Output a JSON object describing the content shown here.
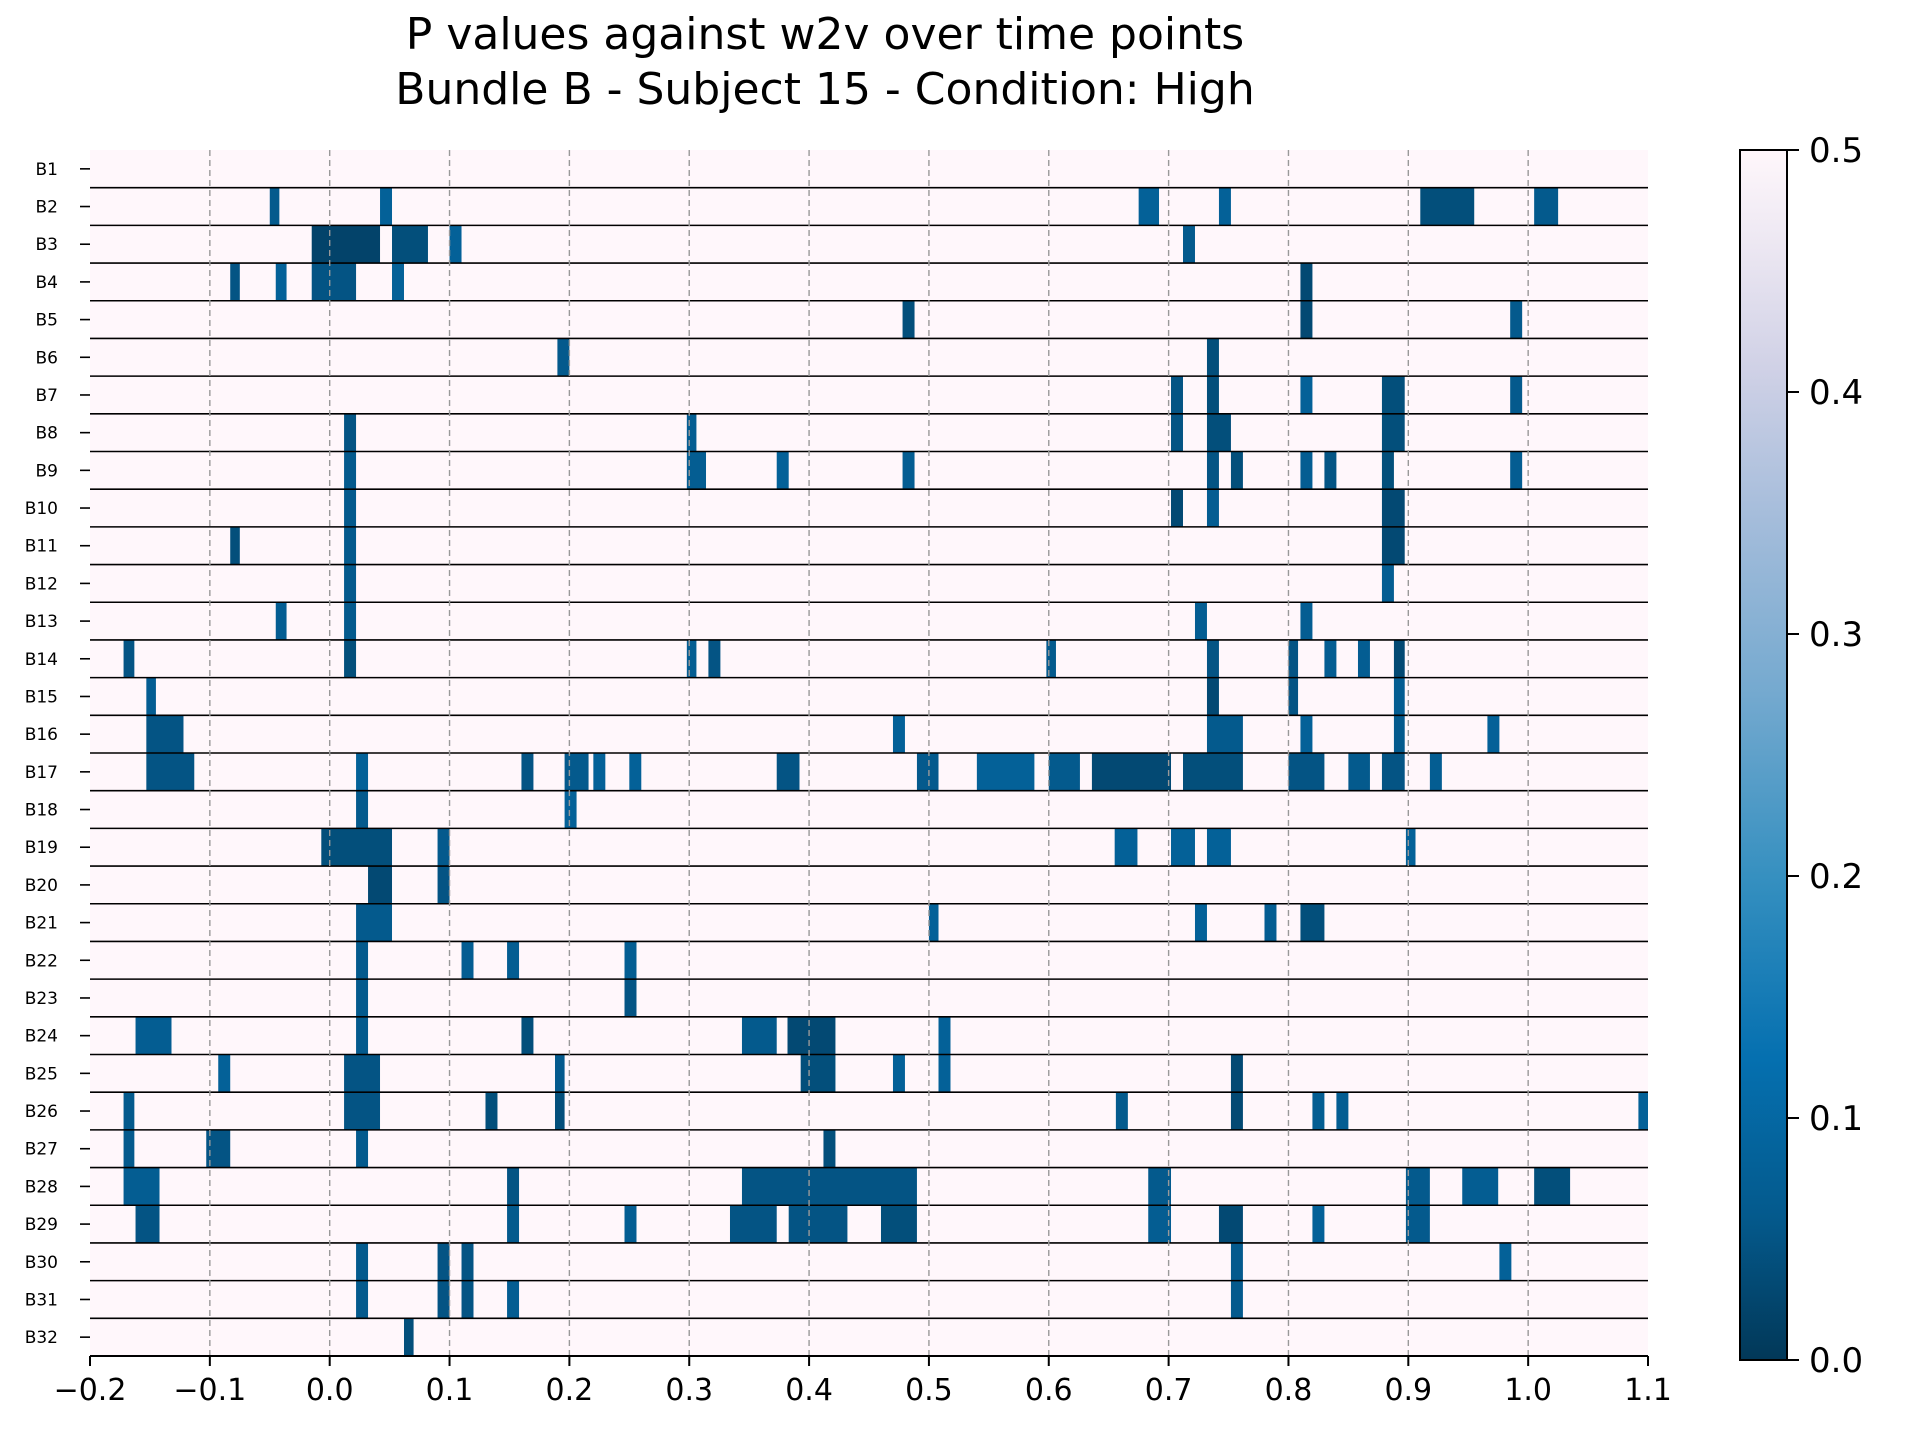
{
  "chart_data": {
    "type": "heatmap",
    "title": "P values against w2v over time points",
    "subtitle": "Bundle B - Subject 15 - Condition: High",
    "xlim": [
      -0.2,
      1.1
    ],
    "x_ticks": [
      "−0.2",
      "−0.1",
      "0.0",
      "0.1",
      "0.2",
      "0.3",
      "0.4",
      "0.5",
      "0.6",
      "0.7",
      "0.8",
      "0.9",
      "1.0",
      "1.1"
    ],
    "x_gridlines": [
      -0.1,
      0.0,
      0.1,
      0.2,
      0.3,
      0.4,
      0.5,
      0.6,
      0.7,
      0.8,
      0.9,
      1.0
    ],
    "grid_style": "dashed vertical",
    "colormap": "PuBu_r",
    "colorbar": {
      "range": [
        0.0,
        0.5
      ],
      "ticks": [
        "0.0",
        "0.1",
        "0.2",
        "0.3",
        "0.4",
        "0.5"
      ],
      "placement": "right"
    },
    "background_value": 0.5,
    "rows": [
      {
        "label": "B1",
        "cells": []
      },
      {
        "label": "B2",
        "cells": [
          [
            -0.05,
            -0.042,
            0.06
          ],
          [
            0.042,
            0.052,
            0.08
          ],
          [
            0.675,
            0.692,
            0.08
          ],
          [
            0.742,
            0.752,
            0.08
          ],
          [
            0.91,
            0.955,
            0.04
          ],
          [
            1.005,
            1.025,
            0.06
          ]
        ]
      },
      {
        "label": "B3",
        "cells": [
          [
            -0.015,
            0.042,
            0.02
          ],
          [
            0.052,
            0.082,
            0.04
          ],
          [
            0.1,
            0.11,
            0.08
          ],
          [
            0.712,
            0.722,
            0.06
          ]
        ]
      },
      {
        "label": "B4",
        "cells": [
          [
            -0.083,
            -0.075,
            0.05
          ],
          [
            -0.045,
            -0.036,
            0.08
          ],
          [
            -0.015,
            0.022,
            0.05
          ],
          [
            0.052,
            0.062,
            0.08
          ],
          [
            0.81,
            0.82,
            0.03
          ]
        ]
      },
      {
        "label": "B5",
        "cells": [
          [
            0.478,
            0.488,
            0.04
          ],
          [
            0.81,
            0.82,
            0.03
          ],
          [
            0.985,
            0.995,
            0.06
          ]
        ]
      },
      {
        "label": "B6",
        "cells": [
          [
            0.19,
            0.2,
            0.06
          ],
          [
            0.732,
            0.742,
            0.04
          ]
        ]
      },
      {
        "label": "B7",
        "cells": [
          [
            0.702,
            0.712,
            0.05
          ],
          [
            0.732,
            0.742,
            0.04
          ],
          [
            0.81,
            0.82,
            0.08
          ],
          [
            0.878,
            0.897,
            0.04
          ],
          [
            0.985,
            0.995,
            0.06
          ]
        ]
      },
      {
        "label": "B8",
        "cells": [
          [
            0.012,
            0.022,
            0.05
          ],
          [
            0.298,
            0.306,
            0.07
          ],
          [
            0.702,
            0.712,
            0.05
          ],
          [
            0.732,
            0.752,
            0.04
          ],
          [
            0.878,
            0.897,
            0.04
          ]
        ]
      },
      {
        "label": "B9",
        "cells": [
          [
            0.012,
            0.022,
            0.06
          ],
          [
            0.298,
            0.314,
            0.07
          ],
          [
            0.373,
            0.383,
            0.08
          ],
          [
            0.478,
            0.488,
            0.07
          ],
          [
            0.732,
            0.742,
            0.05
          ],
          [
            0.752,
            0.762,
            0.04
          ],
          [
            0.81,
            0.82,
            0.07
          ],
          [
            0.83,
            0.84,
            0.05
          ],
          [
            0.878,
            0.888,
            0.04
          ],
          [
            0.985,
            0.995,
            0.07
          ]
        ]
      },
      {
        "label": "B10",
        "cells": [
          [
            0.012,
            0.022,
            0.06
          ],
          [
            0.702,
            0.712,
            0.03
          ],
          [
            0.732,
            0.742,
            0.07
          ],
          [
            0.878,
            0.897,
            0.03
          ]
        ]
      },
      {
        "label": "B11",
        "cells": [
          [
            -0.083,
            -0.075,
            0.04
          ],
          [
            0.012,
            0.022,
            0.06
          ],
          [
            0.878,
            0.897,
            0.03
          ]
        ]
      },
      {
        "label": "B12",
        "cells": [
          [
            0.012,
            0.022,
            0.06
          ],
          [
            0.878,
            0.888,
            0.07
          ]
        ]
      },
      {
        "label": "B13",
        "cells": [
          [
            -0.045,
            -0.036,
            0.07
          ],
          [
            0.012,
            0.022,
            0.06
          ],
          [
            0.722,
            0.732,
            0.07
          ],
          [
            0.81,
            0.82,
            0.07
          ]
        ]
      },
      {
        "label": "B14",
        "cells": [
          [
            -0.172,
            -0.163,
            0.05
          ],
          [
            0.012,
            0.022,
            0.04
          ],
          [
            0.298,
            0.306,
            0.07
          ],
          [
            0.316,
            0.326,
            0.05
          ],
          [
            0.598,
            0.606,
            0.06
          ],
          [
            0.732,
            0.742,
            0.05
          ],
          [
            0.8,
            0.808,
            0.05
          ],
          [
            0.83,
            0.84,
            0.07
          ],
          [
            0.858,
            0.868,
            0.07
          ],
          [
            0.888,
            0.897,
            0.03
          ]
        ]
      },
      {
        "label": "B15",
        "cells": [
          [
            -0.153,
            -0.145,
            0.07
          ],
          [
            0.732,
            0.742,
            0.03
          ],
          [
            0.8,
            0.808,
            0.05
          ],
          [
            0.888,
            0.897,
            0.07
          ]
        ]
      },
      {
        "label": "B16",
        "cells": [
          [
            -0.153,
            -0.122,
            0.05
          ],
          [
            0.47,
            0.48,
            0.08
          ],
          [
            0.732,
            0.762,
            0.06
          ],
          [
            0.81,
            0.82,
            0.08
          ],
          [
            0.888,
            0.897,
            0.06
          ],
          [
            0.966,
            0.976,
            0.08
          ]
        ]
      },
      {
        "label": "B17",
        "cells": [
          [
            -0.153,
            -0.113,
            0.05
          ],
          [
            0.022,
            0.032,
            0.08
          ],
          [
            0.16,
            0.17,
            0.05
          ],
          [
            0.196,
            0.216,
            0.06
          ],
          [
            0.22,
            0.23,
            0.08
          ],
          [
            0.25,
            0.26,
            0.08
          ],
          [
            0.373,
            0.392,
            0.05
          ],
          [
            0.49,
            0.508,
            0.06
          ],
          [
            0.54,
            0.588,
            0.08
          ],
          [
            0.6,
            0.626,
            0.06
          ],
          [
            0.636,
            0.702,
            0.03
          ],
          [
            0.712,
            0.762,
            0.04
          ],
          [
            0.8,
            0.83,
            0.05
          ],
          [
            0.85,
            0.868,
            0.06
          ],
          [
            0.878,
            0.897,
            0.05
          ],
          [
            0.918,
            0.928,
            0.07
          ]
        ]
      },
      {
        "label": "B18",
        "cells": [
          [
            0.022,
            0.032,
            0.06
          ],
          [
            0.196,
            0.206,
            0.08
          ]
        ]
      },
      {
        "label": "B19",
        "cells": [
          [
            -0.007,
            0.052,
            0.04
          ],
          [
            0.09,
            0.1,
            0.06
          ],
          [
            0.655,
            0.674,
            0.08
          ],
          [
            0.702,
            0.722,
            0.08
          ],
          [
            0.732,
            0.752,
            0.08
          ],
          [
            0.898,
            0.906,
            0.08
          ]
        ]
      },
      {
        "label": "B20",
        "cells": [
          [
            0.032,
            0.052,
            0.03
          ],
          [
            0.09,
            0.1,
            0.05
          ]
        ]
      },
      {
        "label": "B21",
        "cells": [
          [
            0.022,
            0.052,
            0.06
          ],
          [
            0.5,
            0.508,
            0.08
          ],
          [
            0.722,
            0.732,
            0.08
          ],
          [
            0.78,
            0.79,
            0.07
          ],
          [
            0.81,
            0.83,
            0.04
          ]
        ]
      },
      {
        "label": "B22",
        "cells": [
          [
            0.022,
            0.032,
            0.06
          ],
          [
            0.11,
            0.12,
            0.07
          ],
          [
            0.148,
            0.158,
            0.07
          ],
          [
            0.246,
            0.256,
            0.07
          ]
        ]
      },
      {
        "label": "B23",
        "cells": [
          [
            0.022,
            0.032,
            0.06
          ],
          [
            0.246,
            0.256,
            0.05
          ]
        ]
      },
      {
        "label": "B24",
        "cells": [
          [
            -0.162,
            -0.132,
            0.07
          ],
          [
            0.022,
            0.032,
            0.06
          ],
          [
            0.16,
            0.17,
            0.04
          ],
          [
            0.344,
            0.373,
            0.06
          ],
          [
            0.382,
            0.422,
            0.03
          ],
          [
            0.508,
            0.518,
            0.08
          ]
        ]
      },
      {
        "label": "B25",
        "cells": [
          [
            -0.093,
            -0.083,
            0.08
          ],
          [
            0.012,
            0.042,
            0.05
          ],
          [
            0.188,
            0.196,
            0.06
          ],
          [
            0.393,
            0.422,
            0.04
          ],
          [
            0.47,
            0.48,
            0.08
          ],
          [
            0.508,
            0.518,
            0.08
          ],
          [
            0.752,
            0.762,
            0.03
          ]
        ]
      },
      {
        "label": "B26",
        "cells": [
          [
            -0.172,
            -0.163,
            0.06
          ],
          [
            0.012,
            0.042,
            0.05
          ],
          [
            0.13,
            0.14,
            0.04
          ],
          [
            0.188,
            0.196,
            0.04
          ],
          [
            0.656,
            0.666,
            0.06
          ],
          [
            0.752,
            0.762,
            0.03
          ],
          [
            0.82,
            0.83,
            0.07
          ],
          [
            0.84,
            0.85,
            0.07
          ],
          [
            1.092,
            1.1,
            0.08
          ]
        ]
      },
      {
        "label": "B27",
        "cells": [
          [
            -0.172,
            -0.163,
            0.06
          ],
          [
            -0.103,
            -0.083,
            0.05
          ],
          [
            0.022,
            0.032,
            0.06
          ],
          [
            0.412,
            0.422,
            0.04
          ]
        ]
      },
      {
        "label": "B28",
        "cells": [
          [
            -0.172,
            -0.142,
            0.07
          ],
          [
            0.148,
            0.158,
            0.05
          ],
          [
            0.344,
            0.49,
            0.05
          ],
          [
            0.683,
            0.702,
            0.06
          ],
          [
            0.898,
            0.918,
            0.06
          ],
          [
            0.945,
            0.975,
            0.07
          ],
          [
            1.005,
            1.035,
            0.04
          ]
        ]
      },
      {
        "label": "B29",
        "cells": [
          [
            -0.162,
            -0.142,
            0.05
          ],
          [
            0.148,
            0.158,
            0.06
          ],
          [
            0.246,
            0.256,
            0.07
          ],
          [
            0.334,
            0.373,
            0.05
          ],
          [
            0.383,
            0.432,
            0.05
          ],
          [
            0.46,
            0.49,
            0.04
          ],
          [
            0.683,
            0.702,
            0.07
          ],
          [
            0.742,
            0.762,
            0.03
          ],
          [
            0.82,
            0.83,
            0.08
          ],
          [
            0.898,
            0.918,
            0.06
          ]
        ]
      },
      {
        "label": "B30",
        "cells": [
          [
            0.022,
            0.032,
            0.06
          ],
          [
            0.09,
            0.1,
            0.05
          ],
          [
            0.11,
            0.12,
            0.05
          ],
          [
            0.752,
            0.762,
            0.06
          ],
          [
            0.976,
            0.986,
            0.08
          ]
        ]
      },
      {
        "label": "B31",
        "cells": [
          [
            0.022,
            0.032,
            0.06
          ],
          [
            0.09,
            0.1,
            0.05
          ],
          [
            0.11,
            0.12,
            0.05
          ],
          [
            0.148,
            0.158,
            0.07
          ],
          [
            0.752,
            0.762,
            0.06
          ]
        ]
      },
      {
        "label": "B32",
        "cells": [
          [
            0.062,
            0.07,
            0.04
          ]
        ]
      }
    ]
  }
}
